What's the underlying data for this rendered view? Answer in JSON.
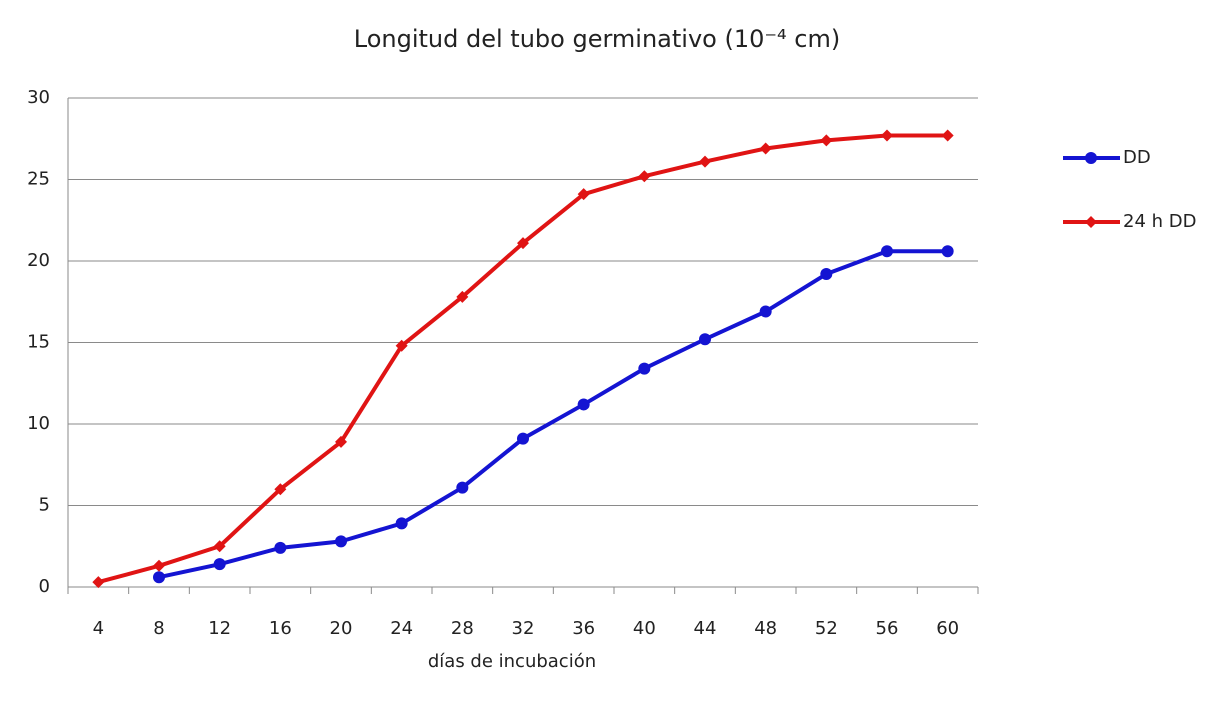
{
  "chart_data": {
    "type": "line",
    "title": "Longitud del tubo germinativo (10⁻⁴ cm)",
    "x_label": "días de incubación",
    "categories": [
      "4",
      "8",
      "12",
      "16",
      "20",
      "24",
      "28",
      "32",
      "36",
      "40",
      "44",
      "48",
      "52",
      "56",
      "60"
    ],
    "series": [
      {
        "name": "DD",
        "color": "#1414d2",
        "marker": "circle",
        "values": [
          null,
          0.6,
          1.4,
          2.4,
          2.8,
          3.9,
          6.1,
          9.1,
          11.2,
          13.4,
          15.2,
          16.9,
          19.2,
          20.6,
          20.6
        ]
      },
      {
        "name": "24 h DD",
        "color": "#e01414",
        "marker": "diamond",
        "values": [
          0.3,
          1.3,
          2.5,
          6.0,
          8.9,
          14.8,
          17.8,
          21.1,
          24.1,
          25.2,
          26.1,
          26.9,
          27.4,
          27.7,
          27.7
        ]
      }
    ],
    "ylim": [
      0,
      30
    ],
    "yticks": [
      0,
      5,
      10,
      15,
      20,
      25,
      30
    ],
    "grid": true,
    "legend": "right"
  }
}
